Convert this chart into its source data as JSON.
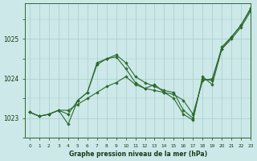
{
  "title": "Graphe pression niveau de la mer (hPa)",
  "background_color": "#cce8e8",
  "grid_color": "#aacccc",
  "line_color": "#2d6a2d",
  "marker_color": "#2d6a2d",
  "xlim": [
    -0.5,
    23
  ],
  "ylim": [
    1022.6,
    1025.9
  ],
  "yticks": [
    1023,
    1024,
    1025
  ],
  "xticks": [
    0,
    1,
    2,
    3,
    4,
    5,
    6,
    7,
    8,
    9,
    10,
    11,
    12,
    13,
    14,
    15,
    16,
    17,
    18,
    19,
    20,
    21,
    22,
    23
  ],
  "series": [
    [
      1023.15,
      1023.05,
      1023.1,
      1023.2,
      1022.85,
      1023.45,
      1023.65,
      1024.35,
      1024.5,
      1024.55,
      1024.25,
      1023.9,
      1023.75,
      1023.85,
      1023.65,
      1023.5,
      1023.1,
      1022.95,
      1024.05,
      1023.85,
      1024.75,
      1025.05,
      1025.35,
      1025.75
    ],
    [
      1023.15,
      1023.05,
      1023.1,
      1023.2,
      1023.2,
      1023.35,
      1023.5,
      1023.65,
      1023.8,
      1023.9,
      1024.05,
      1023.85,
      1023.75,
      1023.7,
      1023.65,
      1023.6,
      1023.45,
      1023.1,
      1023.95,
      1024.0,
      1024.75,
      1025.0,
      1025.3,
      1025.7
    ],
    [
      1023.15,
      1023.05,
      1023.1,
      1023.2,
      1023.1,
      1023.45,
      1023.65,
      1024.4,
      1024.5,
      1024.6,
      1024.4,
      1024.05,
      1023.9,
      1023.8,
      1023.7,
      1023.65,
      1023.2,
      1023.0,
      1024.0,
      1023.95,
      1024.8,
      1025.05,
      1025.35,
      1025.78
    ]
  ],
  "figsize": [
    3.2,
    2.0
  ],
  "dpi": 100
}
